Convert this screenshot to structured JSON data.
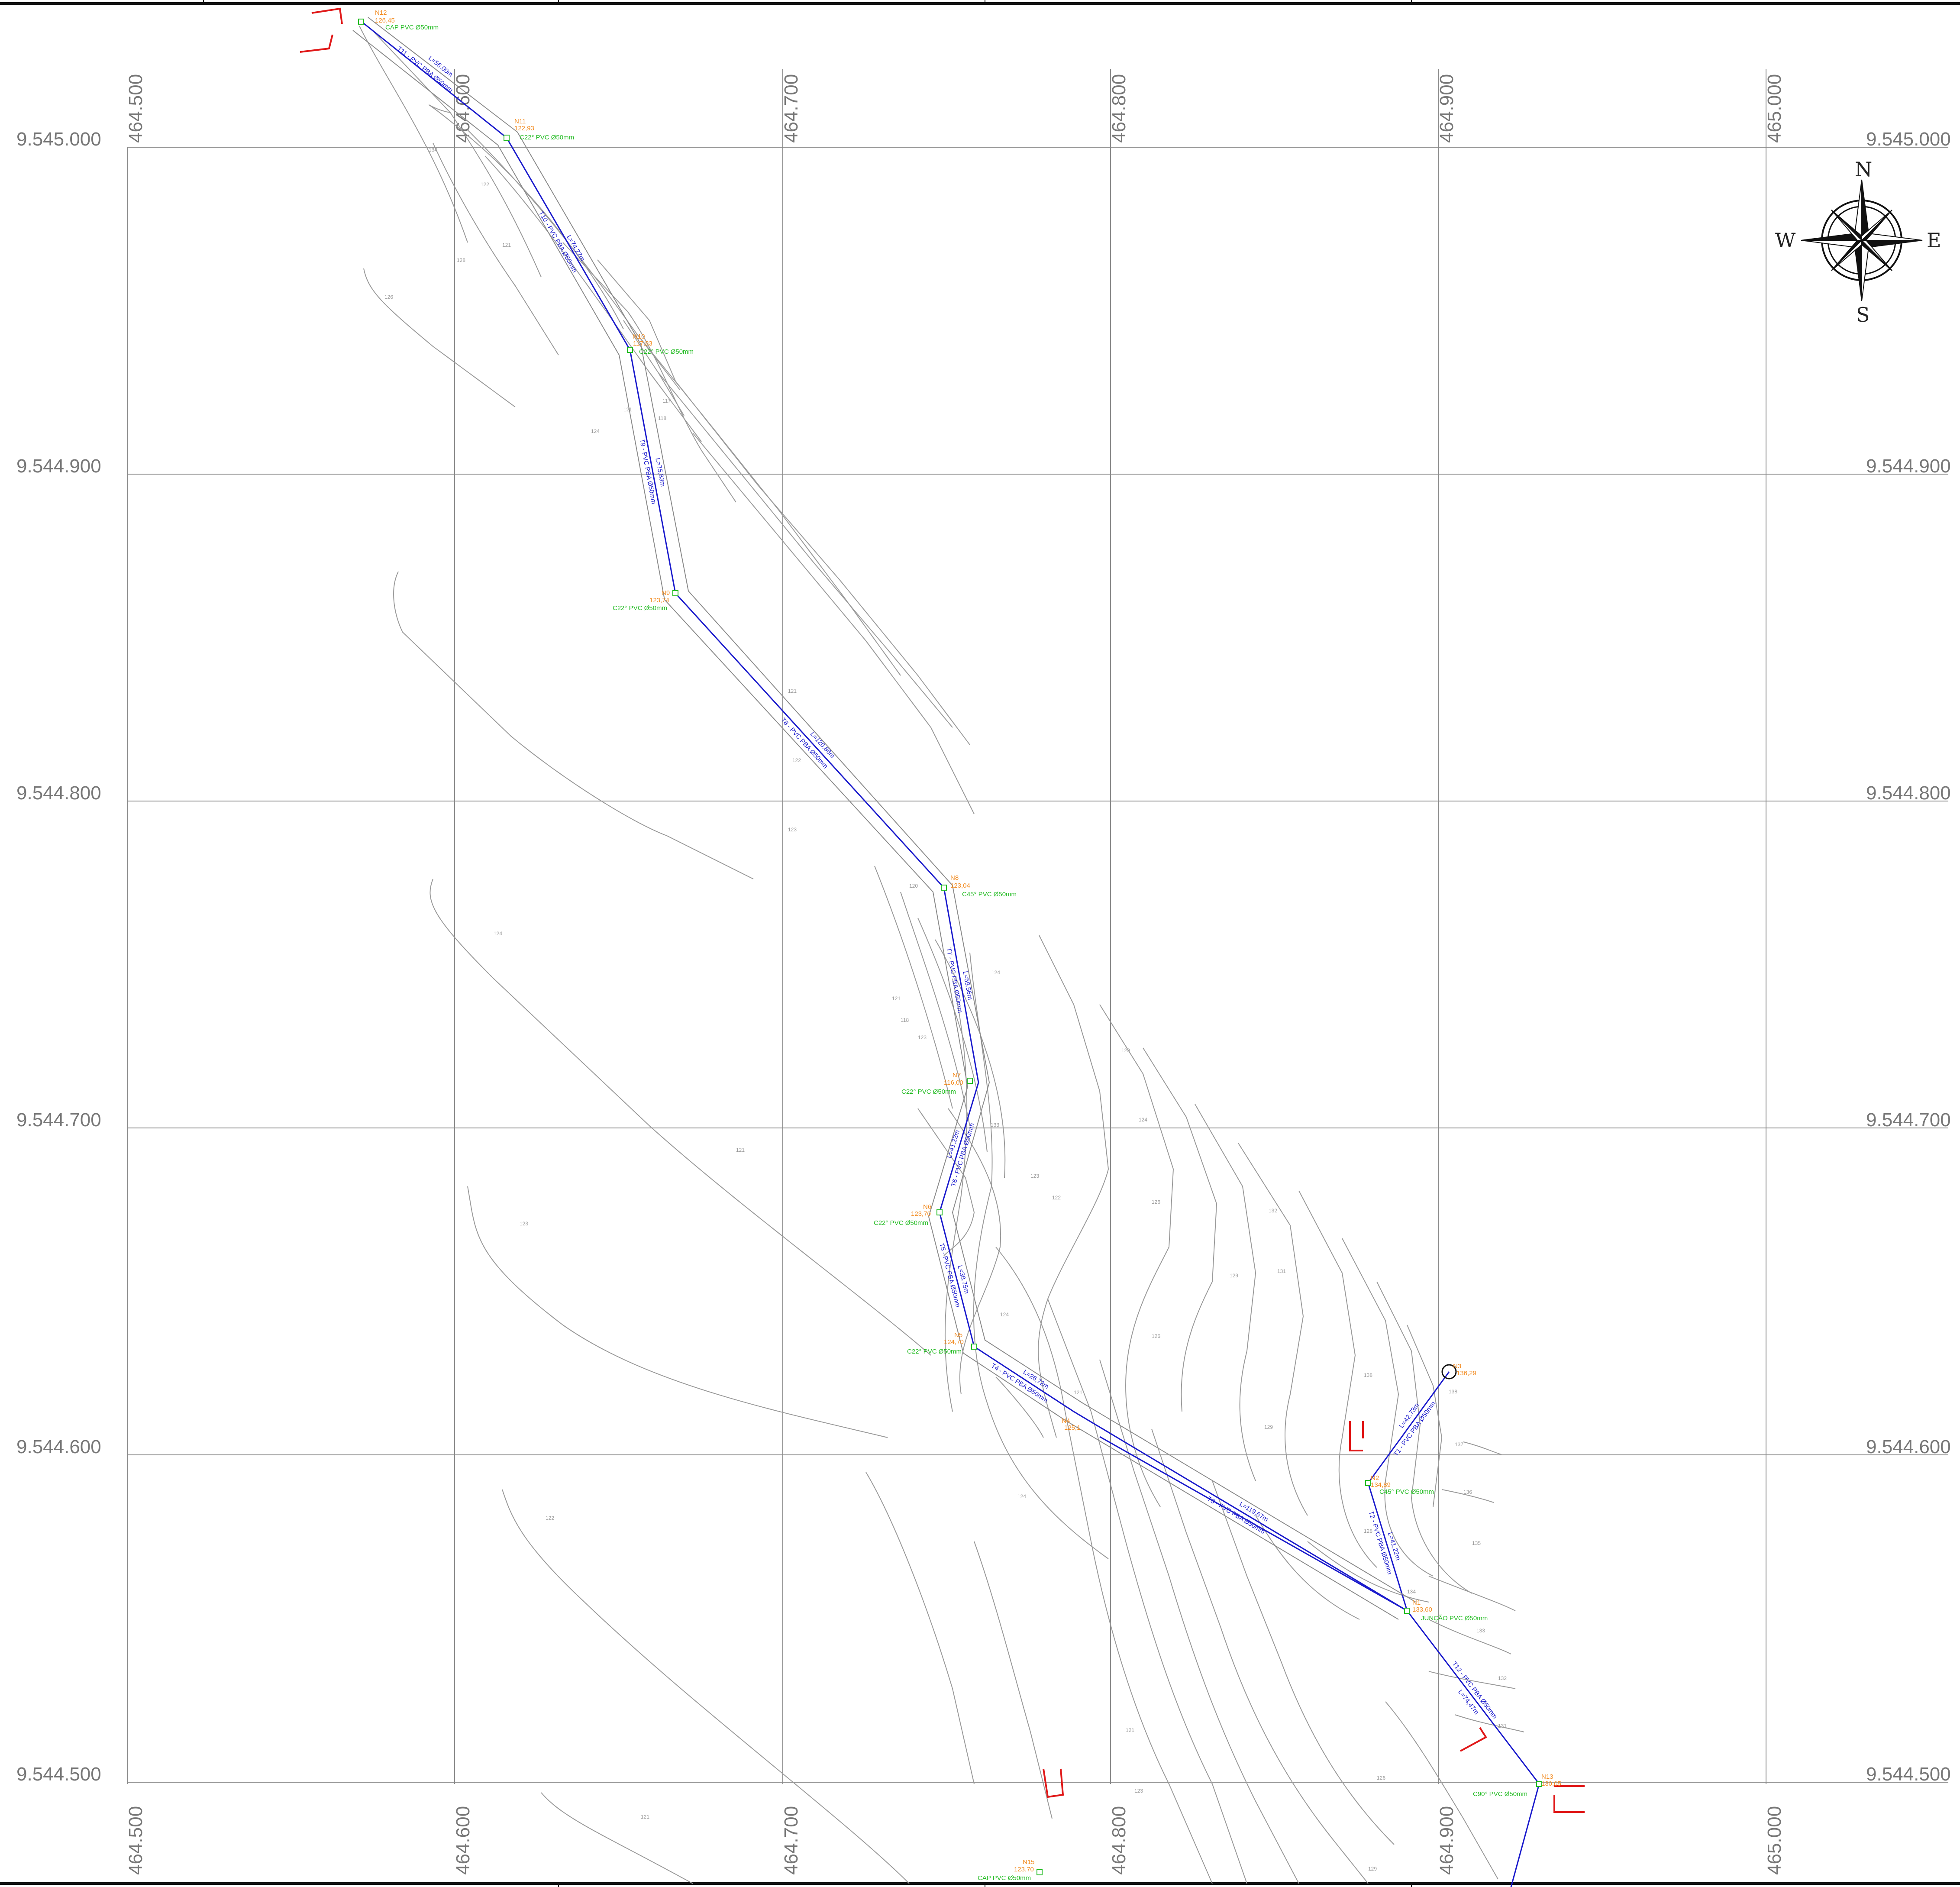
{
  "grid": {
    "eastings": [
      "464.500",
      "464.600",
      "464.700",
      "464.800",
      "464.900",
      "465.000"
    ],
    "northings": [
      "9.545.000",
      "9.544.900",
      "9.544.800",
      "9.544.700",
      "9.544.600",
      "9.544.500"
    ]
  },
  "compass": {
    "n": "N",
    "e": "E",
    "s": "S",
    "w": "W"
  },
  "colors": {
    "pipe": "#1a1acc",
    "node_label": "#f28a1e",
    "fitting_label": "#22bb22",
    "contour": "#9a9a9a",
    "grid": "#8a8a8a",
    "marker": "#e01818"
  },
  "nodes": [
    {
      "id": "N12",
      "elev": "126,45",
      "fitting": "CAP PVC Ø50mm"
    },
    {
      "id": "N11",
      "elev": "122,93",
      "fitting": "C22° PVC Ø50mm"
    },
    {
      "id": "N10",
      "elev": "117,83",
      "fitting": "C22° PVC Ø50mm"
    },
    {
      "id": "N9",
      "elev": "123,74",
      "fitting": "C22° PVC Ø50mm"
    },
    {
      "id": "N8",
      "elev": "123,04",
      "fitting": "C45° PVC Ø50mm"
    },
    {
      "id": "N7",
      "elev": "116,00",
      "fitting": "C22° PVC Ø50mm"
    },
    {
      "id": "N6",
      "elev": "123,70",
      "fitting": "C22° PVC Ø50mm"
    },
    {
      "id": "N5",
      "elev": "124,70",
      "fitting": "C22° PVC Ø50mm"
    },
    {
      "id": "N4",
      "elev": "125,1",
      "fitting": ""
    },
    {
      "id": "N3",
      "elev": "136,29",
      "fitting": ""
    },
    {
      "id": "N2",
      "elev": "134,89",
      "fitting": "C45° PVC Ø50mm"
    },
    {
      "id": "N1",
      "elev": "133,60",
      "fitting": "JUNÇÃO PVC Ø50mm"
    },
    {
      "id": "N13",
      "elev": "130,05",
      "fitting": "C90° PVC Ø50mm"
    },
    {
      "id": "N15",
      "elev": "123,70",
      "fitting": "CAP PVC Ø50mm"
    }
  ],
  "pipes": [
    {
      "name": "T11 - PVC PBA Ø50mm",
      "length": "L=56,00m"
    },
    {
      "name": "T10 - PVC PBA Ø50mm",
      "length": "L=74,27m"
    },
    {
      "name": "T9 - PVC PBA Ø50mm",
      "length": "L=75,83m"
    },
    {
      "name": "T8 - PVC PBA Ø50mm",
      "length": "L=120,86m"
    },
    {
      "name": "T7 - PVC PBA Ø50mm",
      "length": "L=59,56m"
    },
    {
      "name": "T6 - PVC PBA Ø50mm",
      "length": "L=41,22m"
    },
    {
      "name": "T5 - PVC PBA Ø50mm",
      "length": "L=38,75m"
    },
    {
      "name": "T4 - PVC PBA Ø50mm",
      "length": "L=26,72m"
    },
    {
      "name": "T3 - PVC PBA Ø50mm",
      "length": "L=119,67m"
    },
    {
      "name": "T1 - PVC PBA Ø50mm",
      "length": "L=42,73m"
    },
    {
      "name": "T2 - PVC PBA Ø50mm",
      "length": "L=41,22m"
    },
    {
      "name": "T12 - PVC PBA Ø50mm",
      "length": "L=74,47m"
    }
  ],
  "contour_labels": [
    "117",
    "118",
    "119",
    "120",
    "121",
    "122",
    "123",
    "124",
    "125",
    "126",
    "128",
    "129",
    "130",
    "131",
    "132",
    "133",
    "134",
    "135",
    "136",
    "137",
    "138"
  ]
}
